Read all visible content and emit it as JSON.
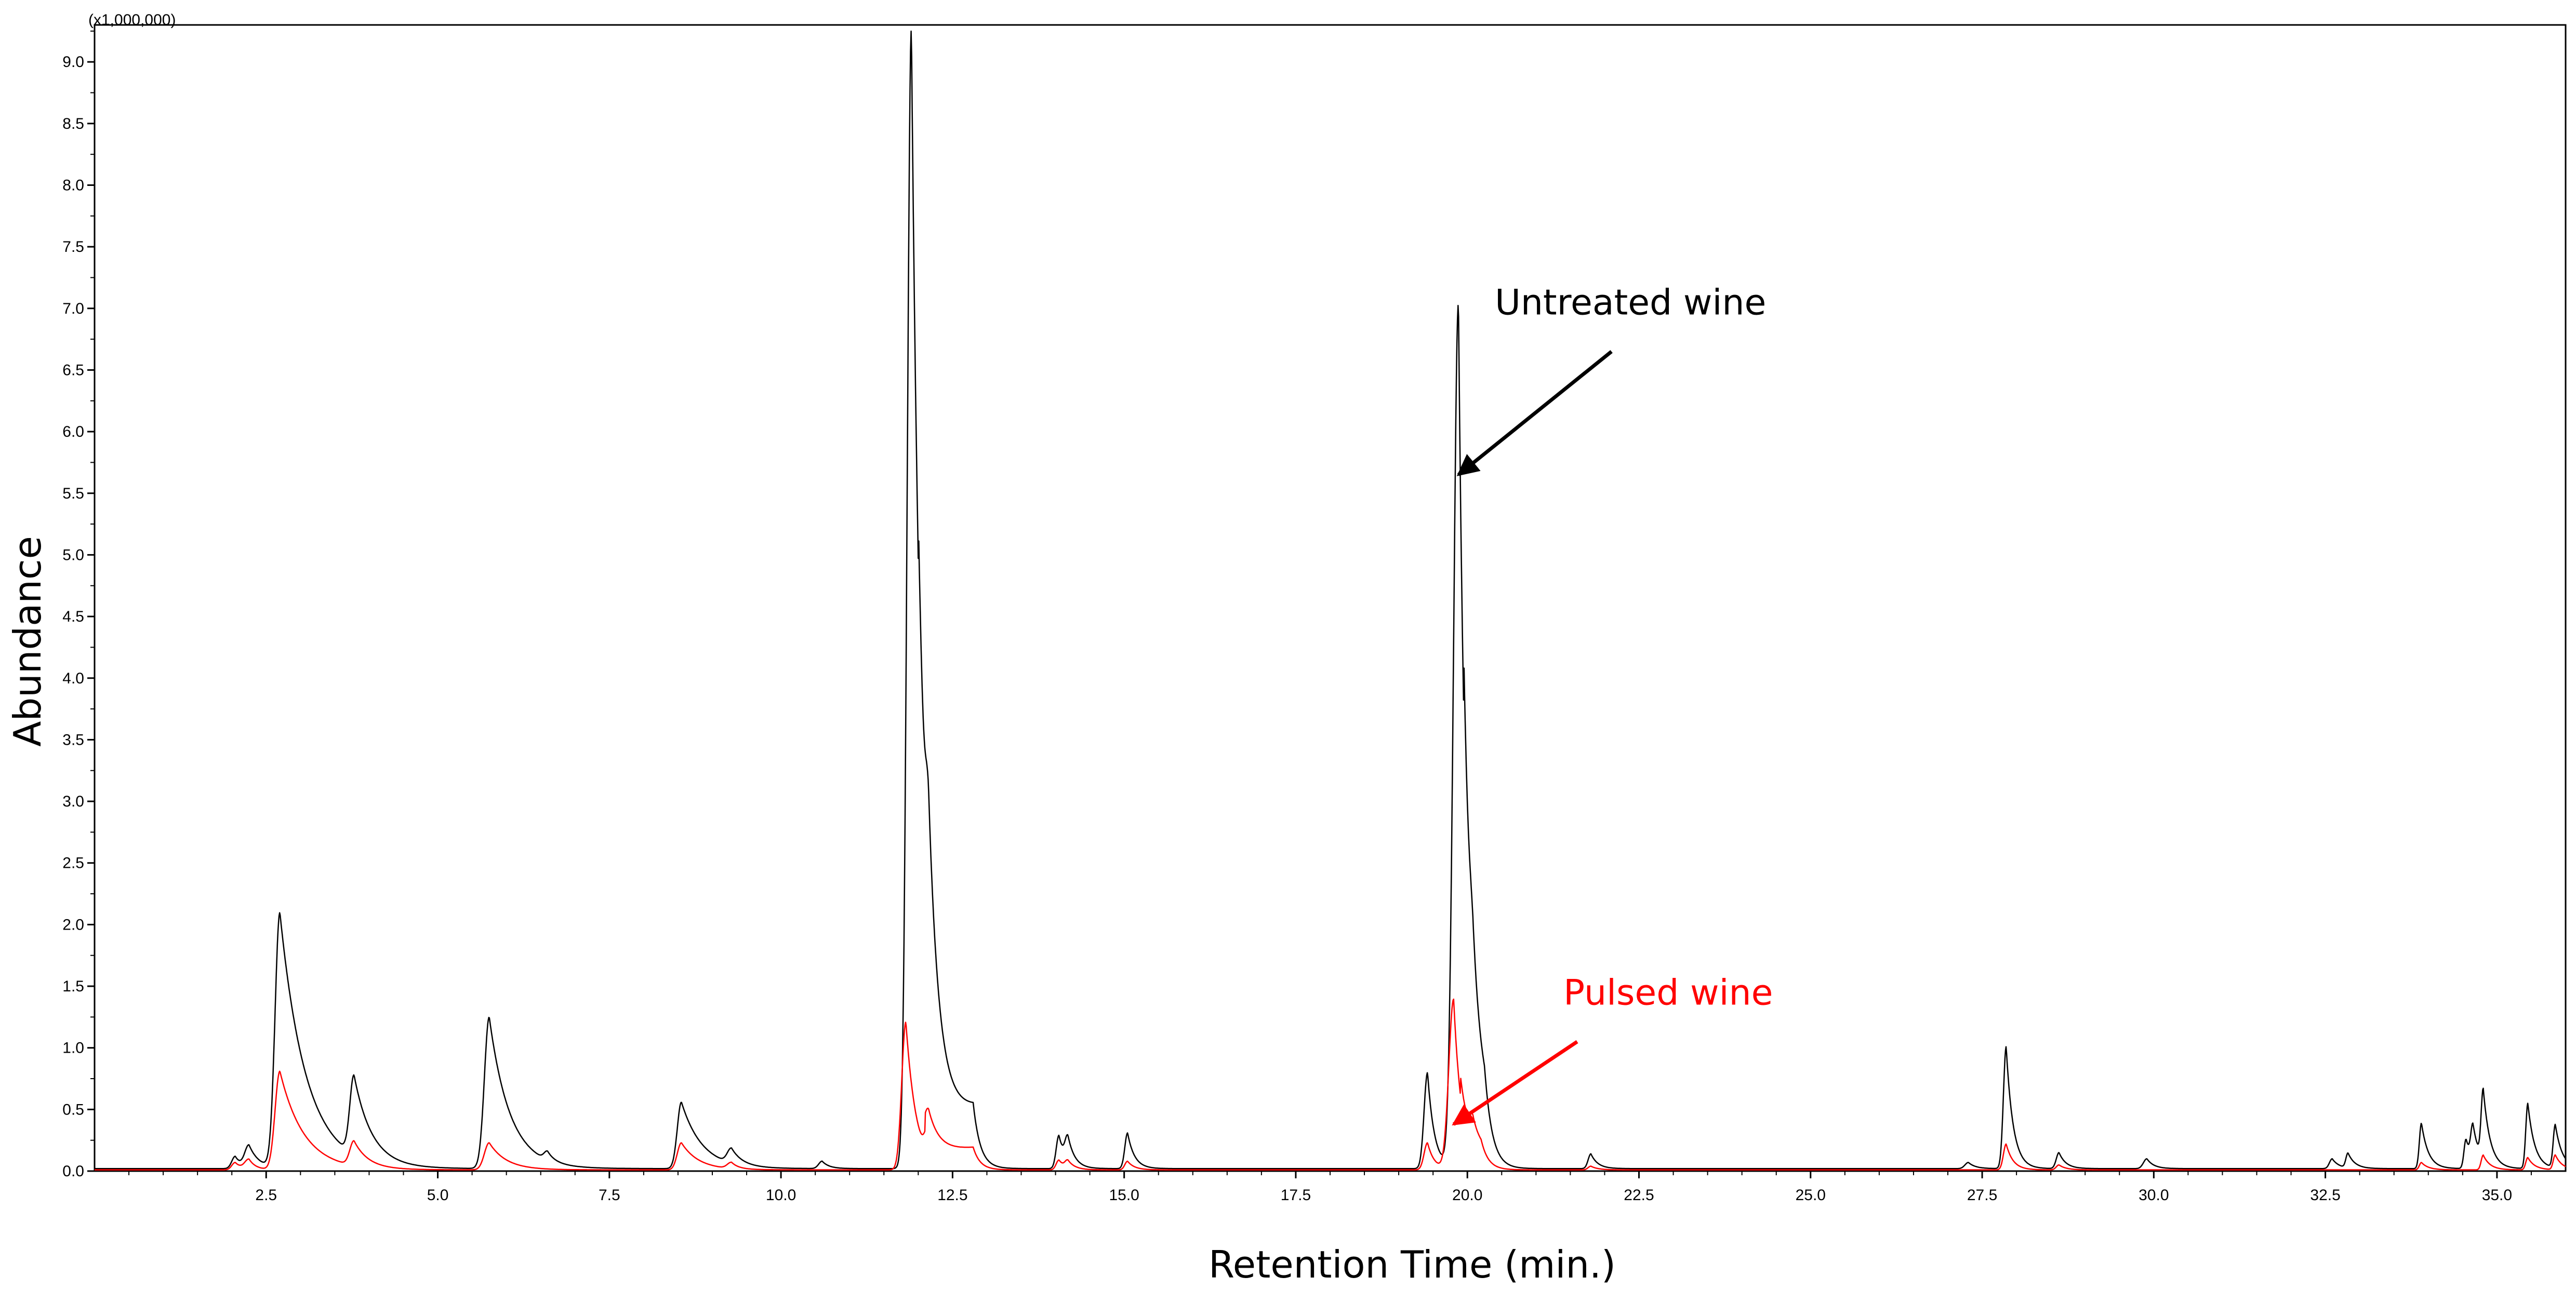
{
  "chart_data": {
    "type": "line",
    "scale_label": "(x1,000,000)",
    "xlabel": "Retention Time (min.)",
    "ylabel": "Abundance",
    "xlim": [
      0,
      36
    ],
    "ylim": [
      0,
      9.3
    ],
    "x_ticks": [
      "2.5",
      "5.0",
      "7.5",
      "10.0",
      "12.5",
      "15.0",
      "17.5",
      "20.0",
      "22.5",
      "25.0",
      "27.5",
      "30.0",
      "32.5",
      "35.0"
    ],
    "y_ticks": [
      "0.0",
      "0.5",
      "1.0",
      "1.5",
      "2.0",
      "2.5",
      "3.0",
      "3.5",
      "4.0",
      "4.5",
      "5.0",
      "5.5",
      "6.0",
      "6.5",
      "7.0",
      "7.5",
      "8.0",
      "8.5",
      "9.0"
    ],
    "grid": false,
    "series": [
      {
        "name": "Untreated wine",
        "color": "#000000",
        "baseline": 0.02,
        "peaks": [
          {
            "x": 2.05,
            "h": 0.1,
            "w": 0.05,
            "t": 0.1
          },
          {
            "x": 2.25,
            "h": 0.18,
            "w": 0.06,
            "t": 0.15
          },
          {
            "x": 2.7,
            "h": 2.07,
            "w": 0.07,
            "t": 0.38
          },
          {
            "x": 3.78,
            "h": 0.64,
            "w": 0.06,
            "t": 0.25
          },
          {
            "x": 5.75,
            "h": 1.23,
            "w": 0.07,
            "t": 0.3
          },
          {
            "x": 6.6,
            "h": 0.07,
            "w": 0.05,
            "t": 0.1
          },
          {
            "x": 8.55,
            "h": 0.54,
            "w": 0.06,
            "t": 0.3
          },
          {
            "x": 9.28,
            "h": 0.12,
            "w": 0.06,
            "t": 0.15
          },
          {
            "x": 10.6,
            "h": 0.06,
            "w": 0.05,
            "t": 0.1
          },
          {
            "x": 11.9,
            "h": 9.25,
            "w": 0.06,
            "t": 0.16
          },
          {
            "x": 12.15,
            "h": 0.75,
            "w": 0.04,
            "t": 0.12
          },
          {
            "x": 14.05,
            "h": 0.27,
            "w": 0.04,
            "t": 0.1
          },
          {
            "x": 14.18,
            "h": 0.2,
            "w": 0.04,
            "t": 0.1
          },
          {
            "x": 15.05,
            "h": 0.29,
            "w": 0.04,
            "t": 0.1
          },
          {
            "x": 19.42,
            "h": 0.78,
            "w": 0.05,
            "t": 0.1
          },
          {
            "x": 19.87,
            "h": 7.02,
            "w": 0.07,
            "t": 0.12
          },
          {
            "x": 20.08,
            "h": 0.35,
            "w": 0.05,
            "t": 0.12
          },
          {
            "x": 21.8,
            "h": 0.12,
            "w": 0.04,
            "t": 0.1
          },
          {
            "x": 27.3,
            "h": 0.05,
            "w": 0.05,
            "t": 0.1
          },
          {
            "x": 27.85,
            "h": 0.99,
            "w": 0.04,
            "t": 0.1
          },
          {
            "x": 28.62,
            "h": 0.13,
            "w": 0.04,
            "t": 0.1
          },
          {
            "x": 29.9,
            "h": 0.08,
            "w": 0.05,
            "t": 0.1
          },
          {
            "x": 32.6,
            "h": 0.08,
            "w": 0.04,
            "t": 0.1
          },
          {
            "x": 32.83,
            "h": 0.12,
            "w": 0.03,
            "t": 0.1
          },
          {
            "x": 33.9,
            "h": 0.37,
            "w": 0.03,
            "t": 0.1
          },
          {
            "x": 34.55,
            "h": 0.24,
            "w": 0.03,
            "t": 0.1
          },
          {
            "x": 34.65,
            "h": 0.28,
            "w": 0.03,
            "t": 0.1
          },
          {
            "x": 34.8,
            "h": 0.57,
            "w": 0.03,
            "t": 0.1
          },
          {
            "x": 35.45,
            "h": 0.53,
            "w": 0.03,
            "t": 0.1
          },
          {
            "x": 35.85,
            "h": 0.35,
            "w": 0.03,
            "t": 0.1
          }
        ],
        "plateaus": [
          {
            "x0": 12.0,
            "x1": 12.8,
            "y0": 0.38,
            "y1": 0.5,
            "edge": 0.1
          },
          {
            "x0": 19.95,
            "x1": 20.25,
            "y0": 0.5,
            "y1": 0.45,
            "edge": 0.1
          }
        ]
      },
      {
        "name": "Pulsed wine",
        "color": "#ff0000",
        "baseline": 0.01,
        "peaks": [
          {
            "x": 2.05,
            "h": 0.06,
            "w": 0.05,
            "t": 0.1
          },
          {
            "x": 2.25,
            "h": 0.08,
            "w": 0.06,
            "t": 0.1
          },
          {
            "x": 2.7,
            "h": 0.8,
            "w": 0.07,
            "t": 0.35
          },
          {
            "x": 3.78,
            "h": 0.2,
            "w": 0.06,
            "t": 0.2
          },
          {
            "x": 5.75,
            "h": 0.22,
            "w": 0.07,
            "t": 0.25
          },
          {
            "x": 8.55,
            "h": 0.22,
            "w": 0.06,
            "t": 0.25
          },
          {
            "x": 9.28,
            "h": 0.05,
            "w": 0.06,
            "t": 0.1
          },
          {
            "x": 11.82,
            "h": 1.2,
            "w": 0.06,
            "t": 0.15
          },
          {
            "x": 12.15,
            "h": 0.22,
            "w": 0.05,
            "t": 0.15
          },
          {
            "x": 14.05,
            "h": 0.08,
            "w": 0.04,
            "t": 0.1
          },
          {
            "x": 14.18,
            "h": 0.06,
            "w": 0.04,
            "t": 0.1
          },
          {
            "x": 15.05,
            "h": 0.07,
            "w": 0.04,
            "t": 0.1
          },
          {
            "x": 19.42,
            "h": 0.22,
            "w": 0.05,
            "t": 0.1
          },
          {
            "x": 19.8,
            "h": 1.38,
            "w": 0.07,
            "t": 0.12
          },
          {
            "x": 20.08,
            "h": 0.16,
            "w": 0.05,
            "t": 0.1
          },
          {
            "x": 21.8,
            "h": 0.03,
            "w": 0.04,
            "t": 0.1
          },
          {
            "x": 27.85,
            "h": 0.21,
            "w": 0.04,
            "t": 0.1
          },
          {
            "x": 28.62,
            "h": 0.04,
            "w": 0.04,
            "t": 0.1
          },
          {
            "x": 33.9,
            "h": 0.06,
            "w": 0.03,
            "t": 0.1
          },
          {
            "x": 34.8,
            "h": 0.12,
            "w": 0.03,
            "t": 0.1
          },
          {
            "x": 35.45,
            "h": 0.1,
            "w": 0.03,
            "t": 0.1
          },
          {
            "x": 35.85,
            "h": 0.12,
            "w": 0.03,
            "t": 0.1
          }
        ],
        "plateaus": [
          {
            "x0": 12.1,
            "x1": 12.8,
            "y0": 0.14,
            "y1": 0.18,
            "edge": 0.1
          },
          {
            "x0": 19.9,
            "x1": 20.2,
            "y0": 0.16,
            "y1": 0.15,
            "edge": 0.1
          }
        ]
      }
    ],
    "annotations": [
      {
        "text": "Untreated wine",
        "color": "#000000",
        "at": [
          19.87,
          5.65
        ],
        "from": [
          22.1,
          6.65
        ],
        "label_at": [
          20.4,
          6.95
        ]
      },
      {
        "text": "Pulsed wine",
        "color": "#ff0000",
        "at": [
          19.8,
          0.38
        ],
        "from": [
          21.6,
          1.05
        ],
        "label_at": [
          21.4,
          1.35
        ]
      }
    ]
  }
}
